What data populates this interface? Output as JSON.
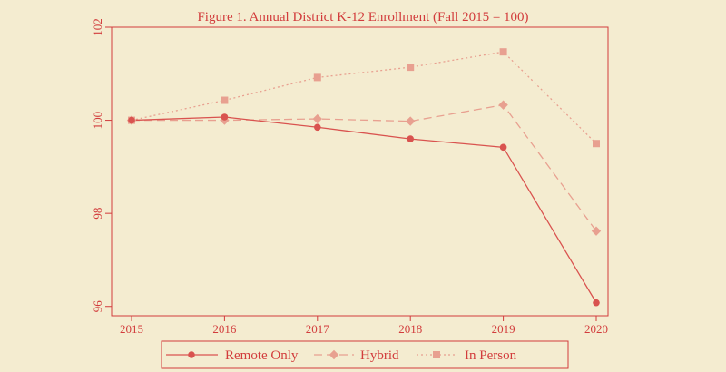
{
  "chart_data": {
    "type": "line",
    "title": "Figure 1. Annual District K-12 Enrollment (Fall 2015 = 100)",
    "xlabel": "",
    "ylabel": "",
    "x": [
      2015,
      2016,
      2017,
      2018,
      2019,
      2020
    ],
    "xlim": [
      2015,
      2020
    ],
    "ylim": [
      95.8,
      102
    ],
    "yticks": [
      96,
      98,
      100,
      102
    ],
    "grid": false,
    "legend_position": "bottom",
    "series": [
      {
        "name": "Remote Only",
        "values": [
          100,
          100.07,
          99.85,
          99.6,
          99.42,
          96.08
        ],
        "color": "#d9534f",
        "dash": "solid",
        "marker": "circle"
      },
      {
        "name": "Hybrid",
        "values": [
          100,
          100,
          100.03,
          99.98,
          100.33,
          97.62
        ],
        "color": "#e8a090",
        "dash": "dashed",
        "marker": "diamond"
      },
      {
        "name": "In Person",
        "values": [
          100,
          100.43,
          100.92,
          101.14,
          101.47,
          99.5
        ],
        "color": "#e8a090",
        "dash": "dotted",
        "marker": "square"
      }
    ]
  }
}
